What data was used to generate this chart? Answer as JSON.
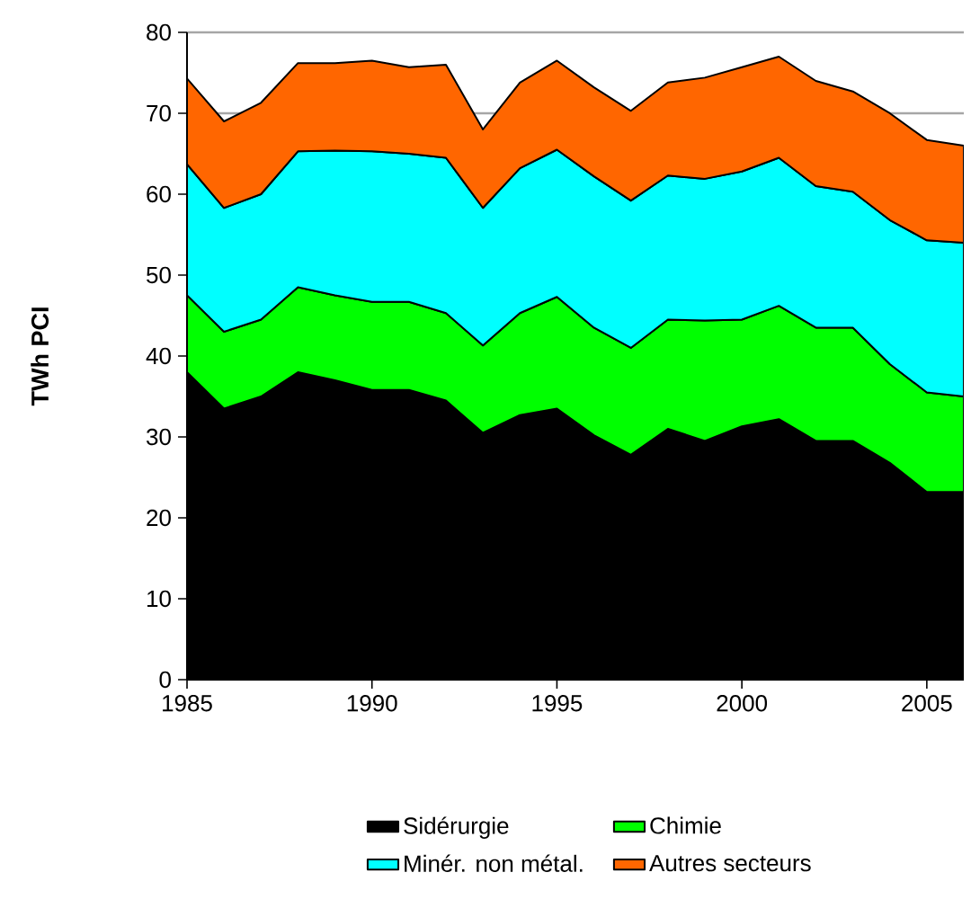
{
  "chart_data": {
    "type": "area",
    "stacked": true,
    "ylabel": "TWh PCI",
    "x": [
      1985,
      1986,
      1987,
      1988,
      1989,
      1990,
      1991,
      1992,
      1993,
      1994,
      1995,
      1996,
      1997,
      1998,
      1999,
      2000,
      2001,
      2002,
      2003,
      2004,
      2005,
      2006
    ],
    "series": [
      {
        "name": "Sidérurgie",
        "color": "#000000",
        "values": [
          38,
          33.5,
          35,
          38,
          37,
          35.8,
          35.8,
          34.5,
          30.5,
          32.7,
          33.5,
          30.2,
          27.8,
          31,
          29.5,
          31.3,
          32.2,
          29.5,
          29.5,
          26.8,
          23.2,
          23.2
        ]
      },
      {
        "name": "Chimie",
        "color": "#00ff00",
        "values": [
          9.5,
          9.5,
          9.5,
          10.5,
          10.5,
          10.9,
          10.9,
          10.8,
          10.8,
          12.6,
          13.8,
          13.3,
          13.2,
          13.5,
          14.9,
          13.2,
          14,
          14,
          14,
          12.2,
          12.3,
          11.8
        ]
      },
      {
        "name": "Minér. non métal.",
        "color": "#00ffff",
        "values": [
          16.2,
          15.3,
          15.5,
          16.8,
          17.9,
          18.6,
          18.3,
          19.2,
          17,
          17.9,
          18.2,
          18.7,
          18.2,
          17.8,
          17.5,
          18.3,
          18.3,
          17.5,
          16.8,
          17.8,
          18.8,
          19
        ]
      },
      {
        "name": "Autres secteurs",
        "color": "#ff6600",
        "values": [
          10.6,
          10.7,
          11.3,
          10.9,
          10.8,
          11.2,
          10.7,
          11.5,
          9.7,
          10.6,
          11,
          11,
          11.1,
          11.5,
          12.5,
          12.9,
          12.5,
          13,
          12.4,
          13.2,
          12.4,
          12
        ]
      }
    ],
    "xlim": [
      1985,
      2006
    ],
    "xticks": [
      1985,
      1990,
      1995,
      2000,
      2005
    ],
    "ylim": [
      0,
      80
    ],
    "yticks": [
      0,
      10,
      20,
      30,
      40,
      50,
      60,
      70,
      80
    ],
    "grid": "y",
    "legend": "bottom"
  }
}
